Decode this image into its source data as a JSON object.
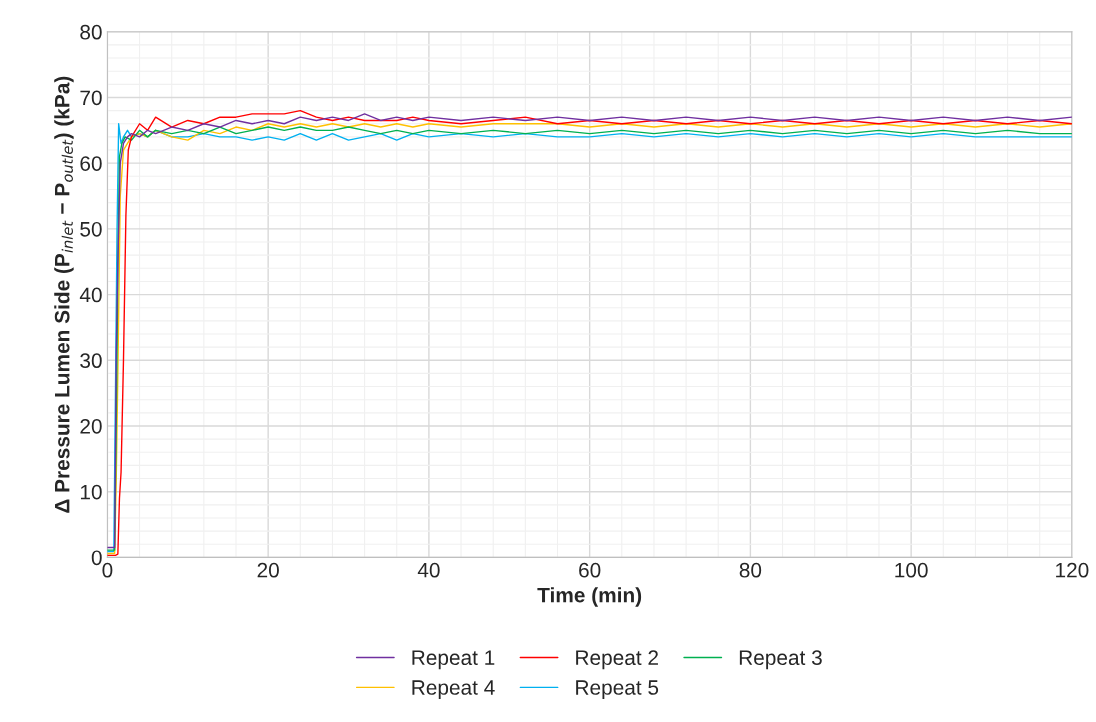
{
  "chart_data": {
    "type": "line",
    "xlabel": "Time (min)",
    "ylabel": "Δ Pressure Lumen Side (P$_{inlet}$ − P$_{outlet}$) (kPa)",
    "xlim": [
      0,
      120
    ],
    "xticks": [
      0,
      20,
      40,
      60,
      80,
      100,
      120
    ],
    "ylim": [
      0,
      80
    ],
    "yticks": [
      0,
      10,
      20,
      30,
      40,
      50,
      60,
      70,
      80
    ],
    "grid": true,
    "legend": "bottom",
    "marker": "none",
    "line_style": "solid",
    "series": [
      {
        "name": "Repeat 1",
        "color": "#7030a0",
        "x": [
          0,
          0.5,
          0.9,
          1.1,
          1.3,
          1.6,
          2,
          2.5,
          3,
          4,
          5,
          6,
          8,
          10,
          12,
          14,
          16,
          18,
          20,
          22,
          24,
          26,
          28,
          30,
          32,
          34,
          36,
          38,
          40,
          44,
          48,
          52,
          56,
          60,
          64,
          68,
          72,
          76,
          80,
          84,
          88,
          92,
          96,
          100,
          104,
          108,
          112,
          116,
          120
        ],
        "values": [
          1.5,
          1.5,
          1.5,
          31,
          45,
          60,
          63,
          64,
          64.5,
          64,
          65,
          64.5,
          65.5,
          65,
          66,
          65.5,
          66.5,
          66,
          66.5,
          66,
          67,
          66.5,
          67,
          66.5,
          67.5,
          66.5,
          67,
          66.5,
          67,
          66.5,
          67,
          66.5,
          67,
          66.5,
          67,
          66.5,
          67,
          66.5,
          67,
          66.5,
          67,
          66.5,
          67,
          66.5,
          67,
          66.5,
          67,
          66.5,
          67
        ]
      },
      {
        "name": "Repeat 2",
        "color": "#ff0000",
        "x": [
          0,
          0.5,
          1,
          1.3,
          1.5,
          1.7,
          2,
          2.3,
          2.6,
          3,
          4,
          5,
          6,
          8,
          10,
          12,
          14,
          16,
          18,
          20,
          22,
          24,
          26,
          28,
          30,
          32,
          34,
          36,
          38,
          40,
          44,
          48,
          52,
          56,
          60,
          64,
          68,
          72,
          76,
          80,
          84,
          88,
          92,
          96,
          100,
          104,
          108,
          112,
          116,
          120
        ],
        "values": [
          0.3,
          0.3,
          0.3,
          0.5,
          9,
          13,
          30,
          52,
          62,
          64,
          66,
          65,
          67,
          65.5,
          66.5,
          66,
          67,
          67,
          67.5,
          67.5,
          67.5,
          68,
          67,
          66.5,
          67,
          66.5,
          66.5,
          66.5,
          67,
          66.5,
          66,
          66.5,
          67,
          66,
          66.5,
          66,
          66.5,
          66,
          66.5,
          66,
          66.5,
          66,
          66.5,
          66,
          66.5,
          66,
          66.5,
          66,
          66.5,
          66
        ]
      },
      {
        "name": "Repeat 3",
        "color": "#00b050",
        "x": [
          0,
          0.5,
          0.9,
          1.1,
          1.3,
          1.5,
          1.8,
          2.2,
          3,
          4,
          5,
          6,
          8,
          10,
          12,
          14,
          16,
          18,
          20,
          22,
          24,
          26,
          28,
          30,
          32,
          34,
          36,
          38,
          40,
          44,
          48,
          52,
          56,
          60,
          64,
          68,
          72,
          76,
          80,
          84,
          88,
          92,
          96,
          100,
          104,
          108,
          112,
          116,
          120
        ],
        "values": [
          1.1,
          1.1,
          1.1,
          20,
          44,
          61,
          63,
          64,
          63.5,
          65,
          64,
          65,
          64.5,
          65,
          64.5,
          65.5,
          64.5,
          65,
          65.5,
          65,
          65.5,
          65,
          65,
          65.5,
          65,
          64.5,
          65,
          64.5,
          65,
          64.5,
          65,
          64.5,
          65,
          64.5,
          65,
          64.5,
          65,
          64.5,
          65,
          64.5,
          65,
          64.5,
          65,
          64.5,
          65,
          64.5,
          65,
          64.5,
          64.5
        ]
      },
      {
        "name": "Repeat 4",
        "color": "#ffc000",
        "x": [
          0,
          0.5,
          0.9,
          1.1,
          1.3,
          1.6,
          2,
          2.5,
          3,
          4,
          5,
          6,
          8,
          10,
          12,
          14,
          16,
          18,
          20,
          22,
          24,
          26,
          28,
          30,
          32,
          34,
          36,
          38,
          40,
          44,
          48,
          52,
          56,
          60,
          64,
          68,
          72,
          76,
          80,
          84,
          88,
          92,
          96,
          100,
          104,
          108,
          112,
          116,
          120
        ],
        "values": [
          0.6,
          0.6,
          0.6,
          12,
          28,
          55,
          62,
          63,
          64,
          64.5,
          64,
          65,
          64,
          63.5,
          65,
          64.5,
          65.5,
          65,
          66,
          65.5,
          66,
          65.5,
          66,
          65.5,
          66,
          65.5,
          66,
          65.5,
          66,
          65.5,
          66,
          66,
          66,
          65.5,
          66,
          65.5,
          66,
          65.5,
          66,
          65.5,
          66,
          65.5,
          66,
          65.5,
          66,
          65.5,
          66,
          65.5,
          66
        ]
      },
      {
        "name": "Repeat 5",
        "color": "#00b0f0",
        "x": [
          0,
          0.5,
          0.8,
          1,
          1.2,
          1.4,
          1.7,
          2,
          2.5,
          3,
          4,
          5,
          6,
          8,
          10,
          12,
          14,
          16,
          18,
          20,
          22,
          24,
          26,
          28,
          30,
          32,
          34,
          36,
          38,
          40,
          44,
          48,
          52,
          56,
          60,
          64,
          68,
          72,
          76,
          80,
          84,
          88,
          92,
          96,
          100,
          104,
          108,
          112,
          116,
          120
        ],
        "values": [
          0.9,
          0.9,
          0.9,
          25,
          50,
          66,
          63,
          64,
          65,
          64,
          64.5,
          64,
          65,
          64,
          64,
          64.5,
          64,
          64,
          63.5,
          64,
          63.5,
          64.5,
          63.5,
          64.5,
          63.5,
          64,
          64.5,
          63.5,
          64.5,
          64,
          64.5,
          64,
          64.5,
          64,
          64,
          64.5,
          64,
          64.5,
          64,
          64.5,
          64,
          64.5,
          64,
          64.5,
          64,
          64.5,
          64,
          64,
          64,
          64
        ]
      }
    ]
  }
}
